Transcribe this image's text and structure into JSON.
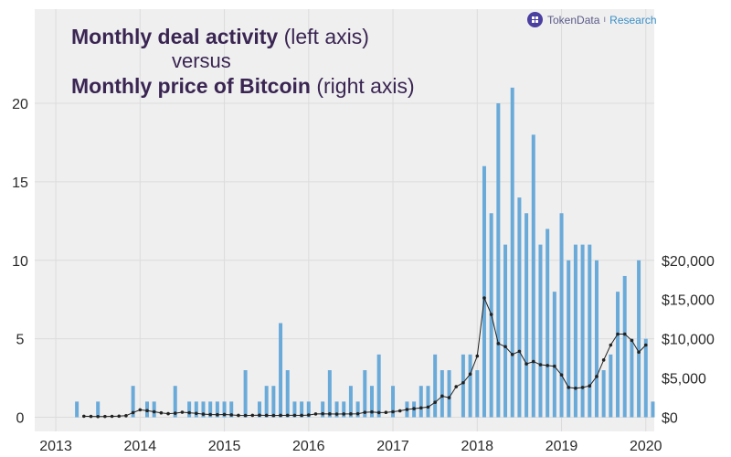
{
  "brand": {
    "logo_icon": "tokendata-logo-icon",
    "name": "TokenData",
    "separator": "ı",
    "section": "Research"
  },
  "title": {
    "line1_bold": "Monthly deal activity",
    "line1_rest": " (left axis)",
    "line2": "versus",
    "line3_bold": "Monthly price of Bitcoin",
    "line3_rest": " (right axis)"
  },
  "chart_data": {
    "type": "bar+line",
    "title": "Monthly deal activity (left axis) versus Monthly price of Bitcoin (right axis)",
    "x_axis": {
      "label": "",
      "range": [
        2012.75,
        2020.1
      ],
      "ticks": [
        2013,
        2014,
        2015,
        2016,
        2017,
        2018,
        2019,
        2020
      ],
      "tick_labels": [
        "2013",
        "2014",
        "2015",
        "2016",
        "2017",
        "2018",
        "2019",
        "2020"
      ]
    },
    "y_left": {
      "label": "Monthly deal activity",
      "range": [
        -0.9,
        26
      ],
      "ticks": [
        0,
        5,
        10,
        15,
        20
      ],
      "tick_labels": [
        "0",
        "5",
        "10",
        "15",
        "20"
      ]
    },
    "y_right": {
      "label": "Monthly price of Bitcoin",
      "range": [
        -1800,
        52000
      ],
      "ticks": [
        0,
        5000,
        10000,
        15000,
        20000
      ],
      "tick_labels": [
        "$0",
        "$5,000",
        "$10,000",
        "$15,000",
        "$20,000"
      ]
    },
    "grid": true,
    "series": [
      {
        "name": "Monthly deal activity",
        "kind": "bar",
        "axis": "left",
        "color": "#6aaad9",
        "start": "2013-04",
        "values": [
          1,
          0,
          0,
          1,
          0,
          0,
          0,
          0,
          2,
          0,
          1,
          1,
          0,
          0,
          2,
          0,
          1,
          1,
          1,
          1,
          1,
          1,
          1,
          0,
          3,
          0,
          1,
          2,
          2,
          6,
          3,
          1,
          1,
          1,
          0,
          1,
          3,
          1,
          1,
          2,
          1,
          3,
          2,
          4,
          0,
          2,
          0,
          1,
          1,
          2,
          2,
          4,
          3,
          3,
          0,
          4,
          4,
          3,
          16,
          13,
          20,
          11,
          21,
          14,
          13,
          18,
          11,
          12,
          8,
          13,
          10,
          11,
          11,
          11,
          10,
          3,
          4,
          8,
          9,
          5,
          10,
          5,
          1
        ]
      },
      {
        "name": "Monthly price of Bitcoin",
        "kind": "line",
        "axis": "right",
        "color": "#222222",
        "start": "2013-05",
        "values": [
          130,
          110,
          90,
          100,
          120,
          140,
          200,
          600,
          950,
          850,
          700,
          560,
          460,
          520,
          640,
          580,
          500,
          400,
          350,
          330,
          360,
          310,
          240,
          230,
          250,
          260,
          240,
          230,
          240,
          250,
          250,
          240,
          290,
          420,
          450,
          430,
          410,
          420,
          430,
          450,
          630,
          680,
          600,
          620,
          700,
          820,
          990,
          1100,
          1200,
          1300,
          1900,
          2700,
          2500,
          3900,
          4400,
          5500,
          7800,
          15200,
          13100,
          9400,
          9000,
          8000,
          8400,
          6800,
          7100,
          6700,
          6600,
          6500,
          5400,
          3800,
          3700,
          3800,
          4000,
          5200,
          7300,
          9200,
          10600,
          10600,
          9800,
          8300,
          9200
        ]
      }
    ]
  }
}
